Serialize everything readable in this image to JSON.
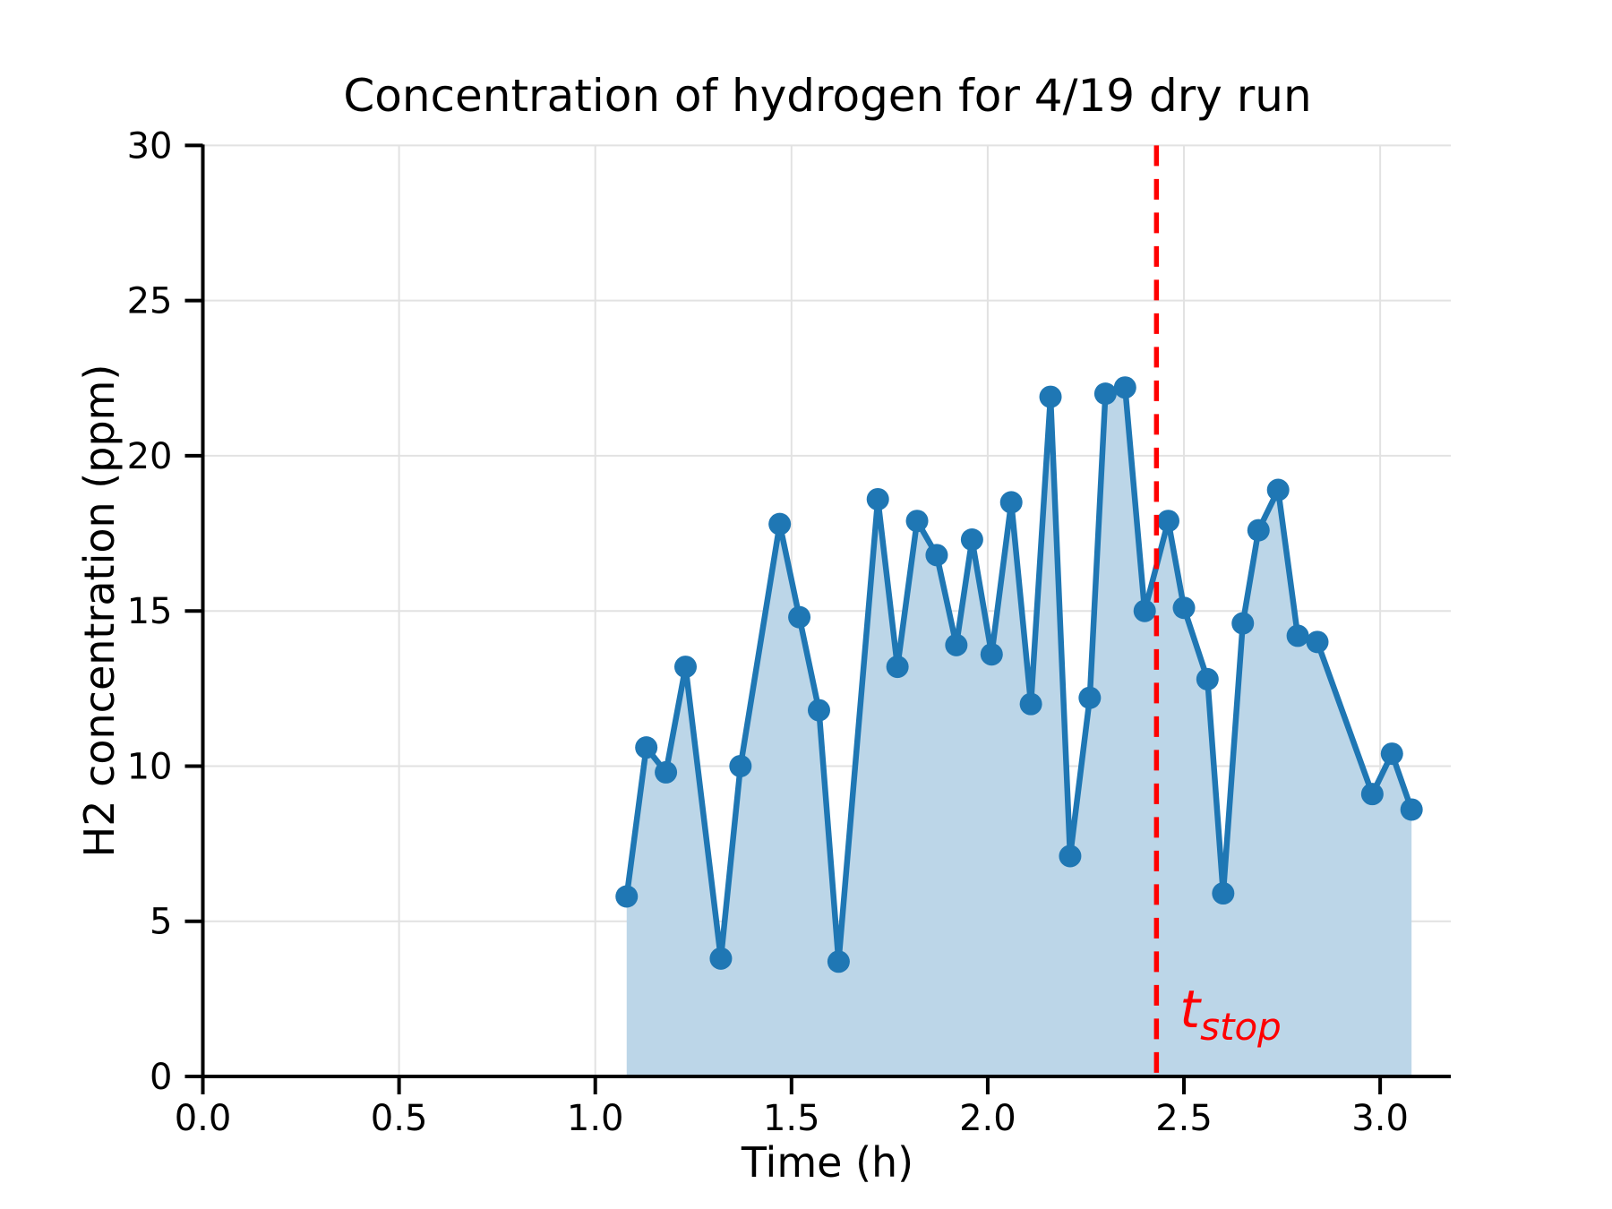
{
  "chart_data": {
    "type": "line",
    "title": "Concentration of hydrogen for 4/19 dry run",
    "xlabel": "Time (h)",
    "ylabel": "H2 concentration (ppm)",
    "x": [
      1.08,
      1.13,
      1.18,
      1.23,
      1.32,
      1.37,
      1.47,
      1.52,
      1.57,
      1.62,
      1.72,
      1.77,
      1.82,
      1.87,
      1.92,
      1.96,
      2.01,
      2.06,
      2.11,
      2.16,
      2.21,
      2.26,
      2.3,
      2.35,
      2.4,
      2.46,
      2.5,
      2.56,
      2.6,
      2.65,
      2.69,
      2.74,
      2.79,
      2.84,
      2.98,
      3.03,
      3.08
    ],
    "y": [
      5.8,
      10.6,
      9.8,
      13.2,
      3.8,
      10.0,
      17.8,
      14.8,
      11.8,
      3.7,
      18.6,
      13.2,
      17.9,
      16.8,
      13.9,
      17.3,
      13.6,
      18.5,
      12.0,
      21.9,
      7.1,
      12.2,
      22.0,
      22.2,
      15.0,
      17.9,
      15.1,
      12.8,
      5.9,
      14.6,
      17.6,
      18.9,
      14.2,
      14.0,
      9.1,
      10.4,
      8.6
    ],
    "xlim": [
      0,
      3.18
    ],
    "ylim": [
      0,
      30
    ],
    "xticks": [
      0.0,
      0.5,
      1.0,
      1.5,
      2.0,
      2.5,
      3.0
    ],
    "xtick_labels": [
      "0.0",
      "0.5",
      "1.0",
      "1.5",
      "2.0",
      "2.5",
      "3.0"
    ],
    "yticks": [
      0,
      5,
      10,
      15,
      20,
      25,
      30
    ],
    "ytick_labels": [
      "0",
      "5",
      "10",
      "15",
      "20",
      "25",
      "30"
    ],
    "grid": true,
    "legend": false,
    "marker": "circle",
    "fill_under": true,
    "annotation": {
      "t_stop": 2.43,
      "label_main": "t",
      "label_sub": "stop",
      "line_style": "dashed-vertical"
    },
    "colors": {
      "line": "#1f77b4",
      "marker": "#1f77b4",
      "fill": "#bcd6e8",
      "grid": "#e2e2e2",
      "spine": "#000000",
      "text": "#000000",
      "annotation": "#ff0000",
      "background": "#ffffff"
    }
  }
}
